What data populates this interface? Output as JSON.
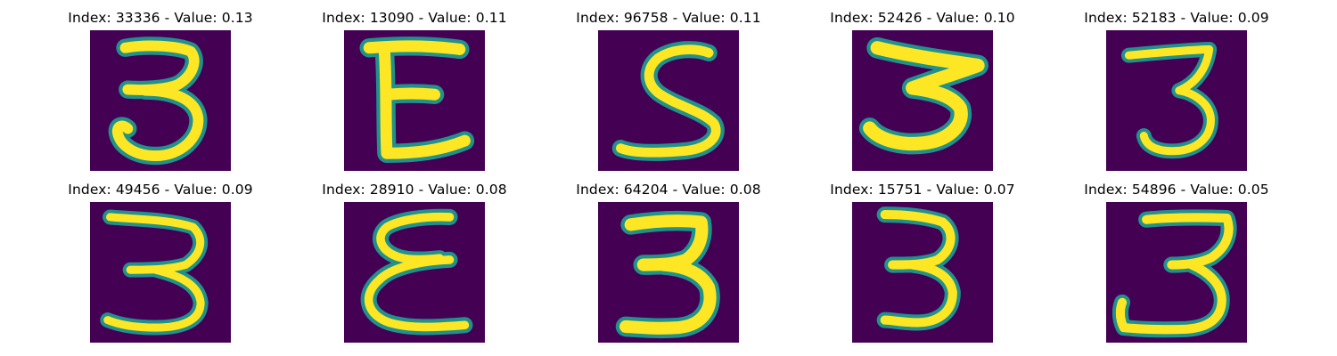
{
  "colors": {
    "background": "#440154",
    "stroke_edge": "#21918c",
    "stroke_mid": "#5ec962",
    "stroke_core": "#fde725"
  },
  "panels": [
    {
      "title": "Index: 33336 - Value: 0.13",
      "digit": "3"
    },
    {
      "title": "Index: 13090 - Value: 0.11",
      "digit": "E"
    },
    {
      "title": "Index: 96758 - Value: 0.11",
      "digit": "S"
    },
    {
      "title": "Index: 52426 - Value: 0.10",
      "digit": "3"
    },
    {
      "title": "Index: 52183 - Value: 0.09",
      "digit": "3"
    },
    {
      "title": "Index: 49456 - Value: 0.09",
      "digit": "3"
    },
    {
      "title": "Index: 28910 - Value: 0.08",
      "digit": "E"
    },
    {
      "title": "Index: 64204 - Value: 0.08",
      "digit": "3"
    },
    {
      "title": "Index: 15751 - Value: 0.07",
      "digit": "3"
    },
    {
      "title": "Index: 54896 - Value: 0.05",
      "digit": "3"
    }
  ]
}
